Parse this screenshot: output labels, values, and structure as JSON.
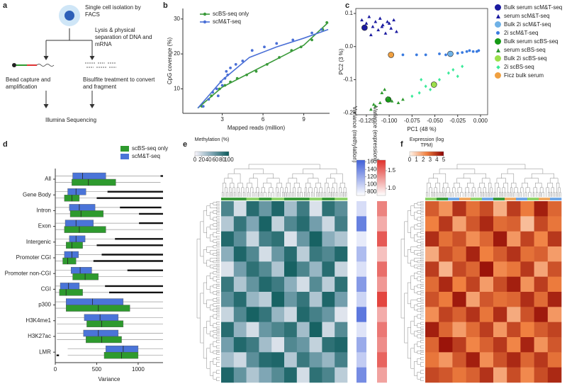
{
  "panel_a": {
    "label": "a",
    "isolation": "Single cell isolation by FACS",
    "lysis": "Lysis & physical separation of DNA and mRNA",
    "bead": "Bead capture and amplification",
    "bisulfite": "Bisulfite treatment to convert and fragment",
    "sequencing": "Illumina Sequencing"
  },
  "chart_data": [
    {
      "label": "b",
      "type": "scatter",
      "xlabel": "Mapped reads (million)",
      "ylabel": "CpG coverage (%)",
      "xlim": [
        0.1,
        10.9
      ],
      "xticks": [
        3,
        6,
        9
      ],
      "ylim": [
        3,
        33
      ],
      "yticks": [
        10,
        20,
        30
      ],
      "series": [
        {
          "name": "scBS-seq only",
          "color": "#3a9a3a",
          "x": [
            1.5,
            2.2,
            2.8,
            3.2,
            3.6,
            4.1,
            4.8,
            5.5,
            6.3,
            7.2,
            8.1,
            8.8,
            9.6,
            10.4,
            10.7
          ],
          "y": [
            5,
            8,
            10,
            11,
            12,
            13,
            14,
            15,
            17,
            19,
            21,
            22,
            24,
            27,
            29
          ],
          "fit": {
            "x": [
              1.2,
              3,
              5,
              7,
              9,
              10.8
            ],
            "y": [
              4.5,
              10.5,
              14.5,
              18.5,
              22.5,
              29
            ]
          }
        },
        {
          "name": "scM&T-seq",
          "color": "#4a6fd6",
          "x": [
            1.6,
            2.0,
            2.3,
            2.6,
            2.9,
            3.2,
            3.3,
            3.6,
            4.0,
            4.5,
            5.2,
            6.1,
            7.0,
            8.2,
            9.6,
            10.3,
            2.7,
            3.0,
            3.4
          ],
          "y": [
            5,
            7,
            9,
            10,
            12,
            13,
            15,
            16,
            17,
            18,
            21,
            22,
            23,
            24,
            26,
            27,
            8,
            11,
            14
          ],
          "fit": {
            "x": [
              1.2,
              3,
              5,
              7,
              9,
              10.8
            ],
            "y": [
              4.5,
              12.5,
              19,
              22,
              24.5,
              27
            ]
          }
        }
      ]
    },
    {
      "label": "c",
      "type": "scatter",
      "xlabel": "PC1 (48 %)",
      "ylabel": "PC2 (3 %)",
      "xlim": [
        -0.1366,
        0.0078
      ],
      "xticks": [
        -0.125,
        {
          "value": -0.1,
          "label": "-0.100"
        },
        -0.075,
        {
          "value": -0.05,
          "label": "-0.050"
        },
        -0.025,
        {
          "value": 0,
          "label": "0.000"
        }
      ],
      "ylim": [
        -0.206,
        0.115
      ],
      "yticks": [
        0.1,
        {
          "value": 0,
          "label": "0.0"
        },
        -0.1,
        -0.2
      ],
      "series": [
        {
          "name": "Bulk serum scM&T-seq",
          "color": "#1a1aa0",
          "marker": "circle",
          "size": "large",
          "x": [
            -0.127
          ],
          "y": [
            0.057
          ]
        },
        {
          "name": "serum scM&T-seq",
          "color": "#1a1aa0",
          "marker": "triangle",
          "size": "small",
          "x": [
            -0.13,
            -0.125,
            -0.122,
            -0.118,
            -0.115,
            -0.112,
            -0.11,
            -0.107,
            -0.104,
            -0.1,
            -0.098,
            -0.095,
            -0.092,
            -0.12,
            -0.108,
            -0.102
          ],
          "y": [
            0.08,
            0.07,
            0.09,
            0.06,
            0.075,
            0.05,
            0.085,
            0.065,
            0.04,
            0.07,
            0.055,
            0.08,
            0.045,
            0.035,
            0.06,
            0.075
          ]
        },
        {
          "name": "Bulk 2i scM&T-seq",
          "color": "#6fb1e6",
          "marker": "circle",
          "size": "large",
          "x": [
            -0.033
          ],
          "y": [
            -0.022
          ]
        },
        {
          "name": "2i scM&T-seq",
          "color": "#3a7be0",
          "marker": "circle",
          "size": "small",
          "x": [
            -0.085,
            -0.07,
            -0.06,
            -0.045,
            -0.038,
            -0.02,
            -0.015,
            -0.012,
            -0.008,
            -0.004,
            -0.002,
            -0.025
          ],
          "y": [
            -0.025,
            -0.025,
            -0.025,
            -0.022,
            -0.025,
            -0.018,
            -0.015,
            -0.012,
            -0.015,
            -0.015,
            -0.012,
            -0.02
          ]
        },
        {
          "name": "Bulk serum scBS-seq",
          "color": "#159a15",
          "marker": "circle",
          "size": "large",
          "x": [
            -0.101
          ],
          "y": [
            -0.16
          ]
        },
        {
          "name": "serum scBS-seq",
          "color": "#2f9a2f",
          "marker": "triangle",
          "size": "small",
          "x": [
            -0.12,
            -0.115,
            -0.11,
            -0.108,
            -0.105,
            -0.102,
            -0.097,
            -0.09,
            -0.085,
            -0.117
          ],
          "y": [
            -0.19,
            -0.18,
            -0.17,
            -0.14,
            -0.13,
            -0.155,
            -0.165,
            -0.17,
            -0.16,
            -0.175
          ]
        },
        {
          "name": "Bulk 2i scBS-seq",
          "color": "#9be04b",
          "marker": "circle",
          "size": "large",
          "x": [
            -0.051
          ],
          "y": [
            -0.115
          ]
        },
        {
          "name": "2i scBS-seq",
          "color": "#3bea9a",
          "marker": "diamond",
          "size": "small",
          "x": [
            -0.075,
            -0.067,
            -0.06,
            -0.055,
            -0.045,
            -0.035,
            -0.03,
            -0.025,
            -0.02,
            -0.065
          ],
          "y": [
            -0.15,
            -0.14,
            -0.12,
            -0.13,
            -0.1,
            -0.08,
            -0.07,
            -0.09,
            -0.06,
            -0.1
          ]
        },
        {
          "name": "Ficz bulk serum",
          "color": "#f0a040",
          "marker": "circle",
          "size": "large",
          "x": [
            -0.098
          ],
          "y": [
            -0.025
          ]
        }
      ]
    },
    {
      "label": "d",
      "type": "box",
      "xlabel": "Variance",
      "xlim": [
        0,
        1300
      ],
      "xticks": [
        0,
        500,
        1000
      ],
      "categories": [
        "All",
        "Gene Body",
        "Intron",
        "Exon",
        "Intergenic",
        "Promoter CGI",
        "Promoter non-CGI",
        "CGI",
        "p300",
        "H3K4me1",
        "H3K27ac",
        "LMR"
      ],
      "series": [
        {
          "name": "scBS-seq only",
          "color": "#2e9a2e",
          "q1": [
            200,
            110,
            180,
            110,
            130,
            90,
            210,
            50,
            130,
            380,
            370,
            590
          ],
          "median": [
            400,
            200,
            310,
            290,
            200,
            150,
            360,
            130,
            520,
            560,
            560,
            800
          ],
          "q3": [
            730,
            290,
            580,
            610,
            330,
            250,
            520,
            330,
            900,
            820,
            800,
            1000
          ],
          "whisker_low": [
            5,
            5,
            5,
            5,
            5,
            5,
            5,
            5,
            5,
            20,
            20,
            150
          ],
          "whisker_high": [
            1270,
            500,
            1010,
            1300,
            500,
            460,
            1300,
            650,
            1300,
            1300,
            1300,
            1300
          ],
          "outliers_from": [
            null,
            500,
            1010,
            null,
            500,
            460,
            null,
            650,
            null,
            null,
            null,
            15
          ],
          "outliers_to": [
            null,
            1300,
            1300,
            null,
            1300,
            1300,
            null,
            1300,
            null,
            null,
            null,
            45
          ]
        },
        {
          "name": "scM&T-seq",
          "color": "#4a74d8",
          "q1": [
            210,
            150,
            170,
            120,
            170,
            110,
            190,
            60,
            130,
            350,
            340,
            610
          ],
          "median": [
            330,
            250,
            290,
            250,
            250,
            200,
            300,
            160,
            450,
            540,
            520,
            820
          ],
          "q3": [
            610,
            370,
            480,
            460,
            360,
            280,
            440,
            290,
            820,
            760,
            760,
            1000
          ],
          "whisker_low": [
            5,
            5,
            5,
            5,
            5,
            5,
            5,
            5,
            5,
            20,
            20,
            150
          ],
          "whisker_high": [
            1270,
            630,
            780,
            1010,
            720,
            560,
            870,
            600,
            1300,
            1300,
            1300,
            1300
          ],
          "outliers_from": [
            1270,
            630,
            780,
            1010,
            720,
            560,
            870,
            600,
            null,
            null,
            null,
            null
          ],
          "outliers_to": [
            1300,
            1300,
            1280,
            1300,
            1300,
            1300,
            1300,
            1300,
            null,
            null,
            null,
            null
          ]
        }
      ]
    },
    {
      "label": "e",
      "type": "heatmap",
      "colorbar": {
        "title": "Methylation (%)",
        "lim": [
          0,
          100
        ],
        "ticks": [
          0,
          20,
          40,
          60,
          80,
          100
        ],
        "colors": [
          "#f7f4fb",
          "#7fa6b5",
          "#0b5a5a"
        ]
      },
      "values": [
        [
          72,
          15,
          88,
          60,
          92,
          35,
          78,
          12,
          85,
          66
        ],
        [
          28,
          82,
          50,
          94,
          22,
          70,
          88,
          55,
          18,
          76
        ],
        [
          90,
          65,
          20,
          75,
          85,
          12,
          60,
          95,
          45,
          30
        ],
        [
          45,
          92,
          70,
          15,
          60,
          88,
          25,
          80,
          70,
          90
        ],
        [
          12,
          55,
          85,
          68,
          30,
          95,
          72,
          40,
          88,
          20
        ],
        [
          80,
          30,
          62,
          90,
          78,
          45,
          15,
          68,
          25,
          85
        ],
        [
          65,
          88,
          40,
          25,
          95,
          60,
          82,
          30,
          92,
          55
        ],
        [
          20,
          70,
          95,
          82,
          40,
          18,
          90,
          75,
          60,
          10
        ],
        [
          88,
          42,
          15,
          60,
          72,
          85,
          35,
          95,
          18,
          68
        ],
        [
          55,
          90,
          78,
          35,
          12,
          70,
          60,
          22,
          85,
          92
        ],
        [
          35,
          18,
          65,
          88,
          92,
          28,
          80,
          58,
          40,
          75
        ],
        [
          92,
          62,
          30,
          50,
          68,
          90,
          15,
          85,
          72,
          25
        ]
      ],
      "side_columns": [
        {
          "title": "Variance (methylation)",
          "lim": [
            700,
            1650
          ],
          "ticks": [
            800,
            1000,
            1200,
            1400,
            1600
          ],
          "colors": [
            "#ffffff",
            "#3f5fd8"
          ],
          "values": [
            900,
            1450,
            820,
            1100,
            880,
            1300,
            950,
            1500,
            860,
            1200,
            1000,
            1380
          ]
        },
        {
          "title": "Variance (expression)",
          "lim": [
            0.8,
            1.8
          ],
          "ticks": [
            {
              "value": 1,
              "label": "1.0"
            },
            1.5
          ],
          "colors": [
            "#ffffff",
            "#e0302a"
          ],
          "values": [
            1.4,
            1.2,
            1.6,
            1.1,
            1.5,
            1.3,
            1.7,
            1.2,
            1.45,
            1.35,
            1.55,
            1.25
          ]
        }
      ]
    },
    {
      "label": "f",
      "type": "heatmap",
      "colorbar": {
        "title": "Expression (log TPM)",
        "lim": [
          0,
          5
        ],
        "ticks": [
          0,
          1,
          2,
          3,
          4,
          5
        ],
        "colors": [
          "#fff5eb",
          "#f08040",
          "#8b0000"
        ]
      },
      "values": [
        [
          3.2,
          2.1,
          4.0,
          2.8,
          3.5,
          1.5,
          3.8,
          2.6,
          4.4,
          3.0
        ],
        [
          2.5,
          3.9,
          1.8,
          3.3,
          4.2,
          2.9,
          3.1,
          1.2,
          3.6,
          2.7
        ],
        [
          4.1,
          2.8,
          3.4,
          2.2,
          3.0,
          4.5,
          2.0,
          3.7,
          2.4,
          3.9
        ],
        [
          1.6,
          3.5,
          2.9,
          4.3,
          2.5,
          3.2,
          4.0,
          2.8,
          3.1,
          1.9
        ],
        [
          3.8,
          1.4,
          3.6,
          3.0,
          4.6,
          2.3,
          2.7,
          3.9,
          1.7,
          3.4
        ],
        [
          2.9,
          4.2,
          2.5,
          3.7,
          1.9,
          3.5,
          4.4,
          2.1,
          3.8,
          2.6
        ],
        [
          3.4,
          2.6,
          4.5,
          1.8,
          3.3,
          2.8,
          3.0,
          4.1,
          2.9,
          4.3
        ],
        [
          2.2,
          3.7,
          3.1,
          4.0,
          2.7,
          4.1,
          1.6,
          3.4,
          4.5,
          2.0
        ],
        [
          4.4,
          3.0,
          1.9,
          2.9,
          3.8,
          2.0,
          3.6,
          2.5,
          3.2,
          3.7
        ],
        [
          3.0,
          4.6,
          3.8,
          2.4,
          3.1,
          3.9,
          2.4,
          4.3,
          2.1,
          3.3
        ],
        [
          2.7,
          2.0,
          3.3,
          4.4,
          2.2,
          3.4,
          4.2,
          3.0,
          3.9,
          2.8
        ],
        [
          3.6,
          3.3,
          2.7,
          3.1,
          4.0,
          1.7,
          3.5,
          2.3,
          3.5,
          4.2
        ]
      ]
    }
  ]
}
